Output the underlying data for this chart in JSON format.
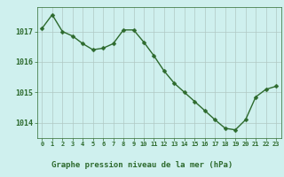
{
  "x": [
    0,
    1,
    2,
    3,
    4,
    5,
    6,
    7,
    8,
    9,
    10,
    11,
    12,
    13,
    14,
    15,
    16,
    17,
    18,
    19,
    20,
    21,
    22,
    23
  ],
  "y": [
    1017.1,
    1017.55,
    1017.0,
    1016.85,
    1016.6,
    1016.4,
    1016.45,
    1016.6,
    1017.05,
    1017.05,
    1016.65,
    1016.2,
    1015.7,
    1015.3,
    1015.0,
    1014.7,
    1014.4,
    1014.1,
    1013.82,
    1013.77,
    1014.1,
    1014.85,
    1015.1,
    1015.2
  ],
  "line_color": "#2d6a2d",
  "marker_color": "#2d6a2d",
  "bg_color": "#cff0ee",
  "footer_bg": "#aad4c8",
  "grid_color": "#b0c8c4",
  "xlabel": "Graphe pression niveau de la mer (hPa)",
  "xlabel_color": "#2d6a2d",
  "tick_color": "#2d6a2d",
  "ylim": [
    1013.5,
    1017.8
  ],
  "yticks": [
    1014,
    1015,
    1016,
    1017
  ],
  "xtick_labels": [
    "0",
    "1",
    "2",
    "3",
    "4",
    "5",
    "6",
    "7",
    "8",
    "9",
    "10",
    "11",
    "12",
    "13",
    "14",
    "15",
    "16",
    "17",
    "18",
    "19",
    "20",
    "21",
    "22",
    "23"
  ],
  "marker_size": 2.5,
  "line_width": 1.0
}
